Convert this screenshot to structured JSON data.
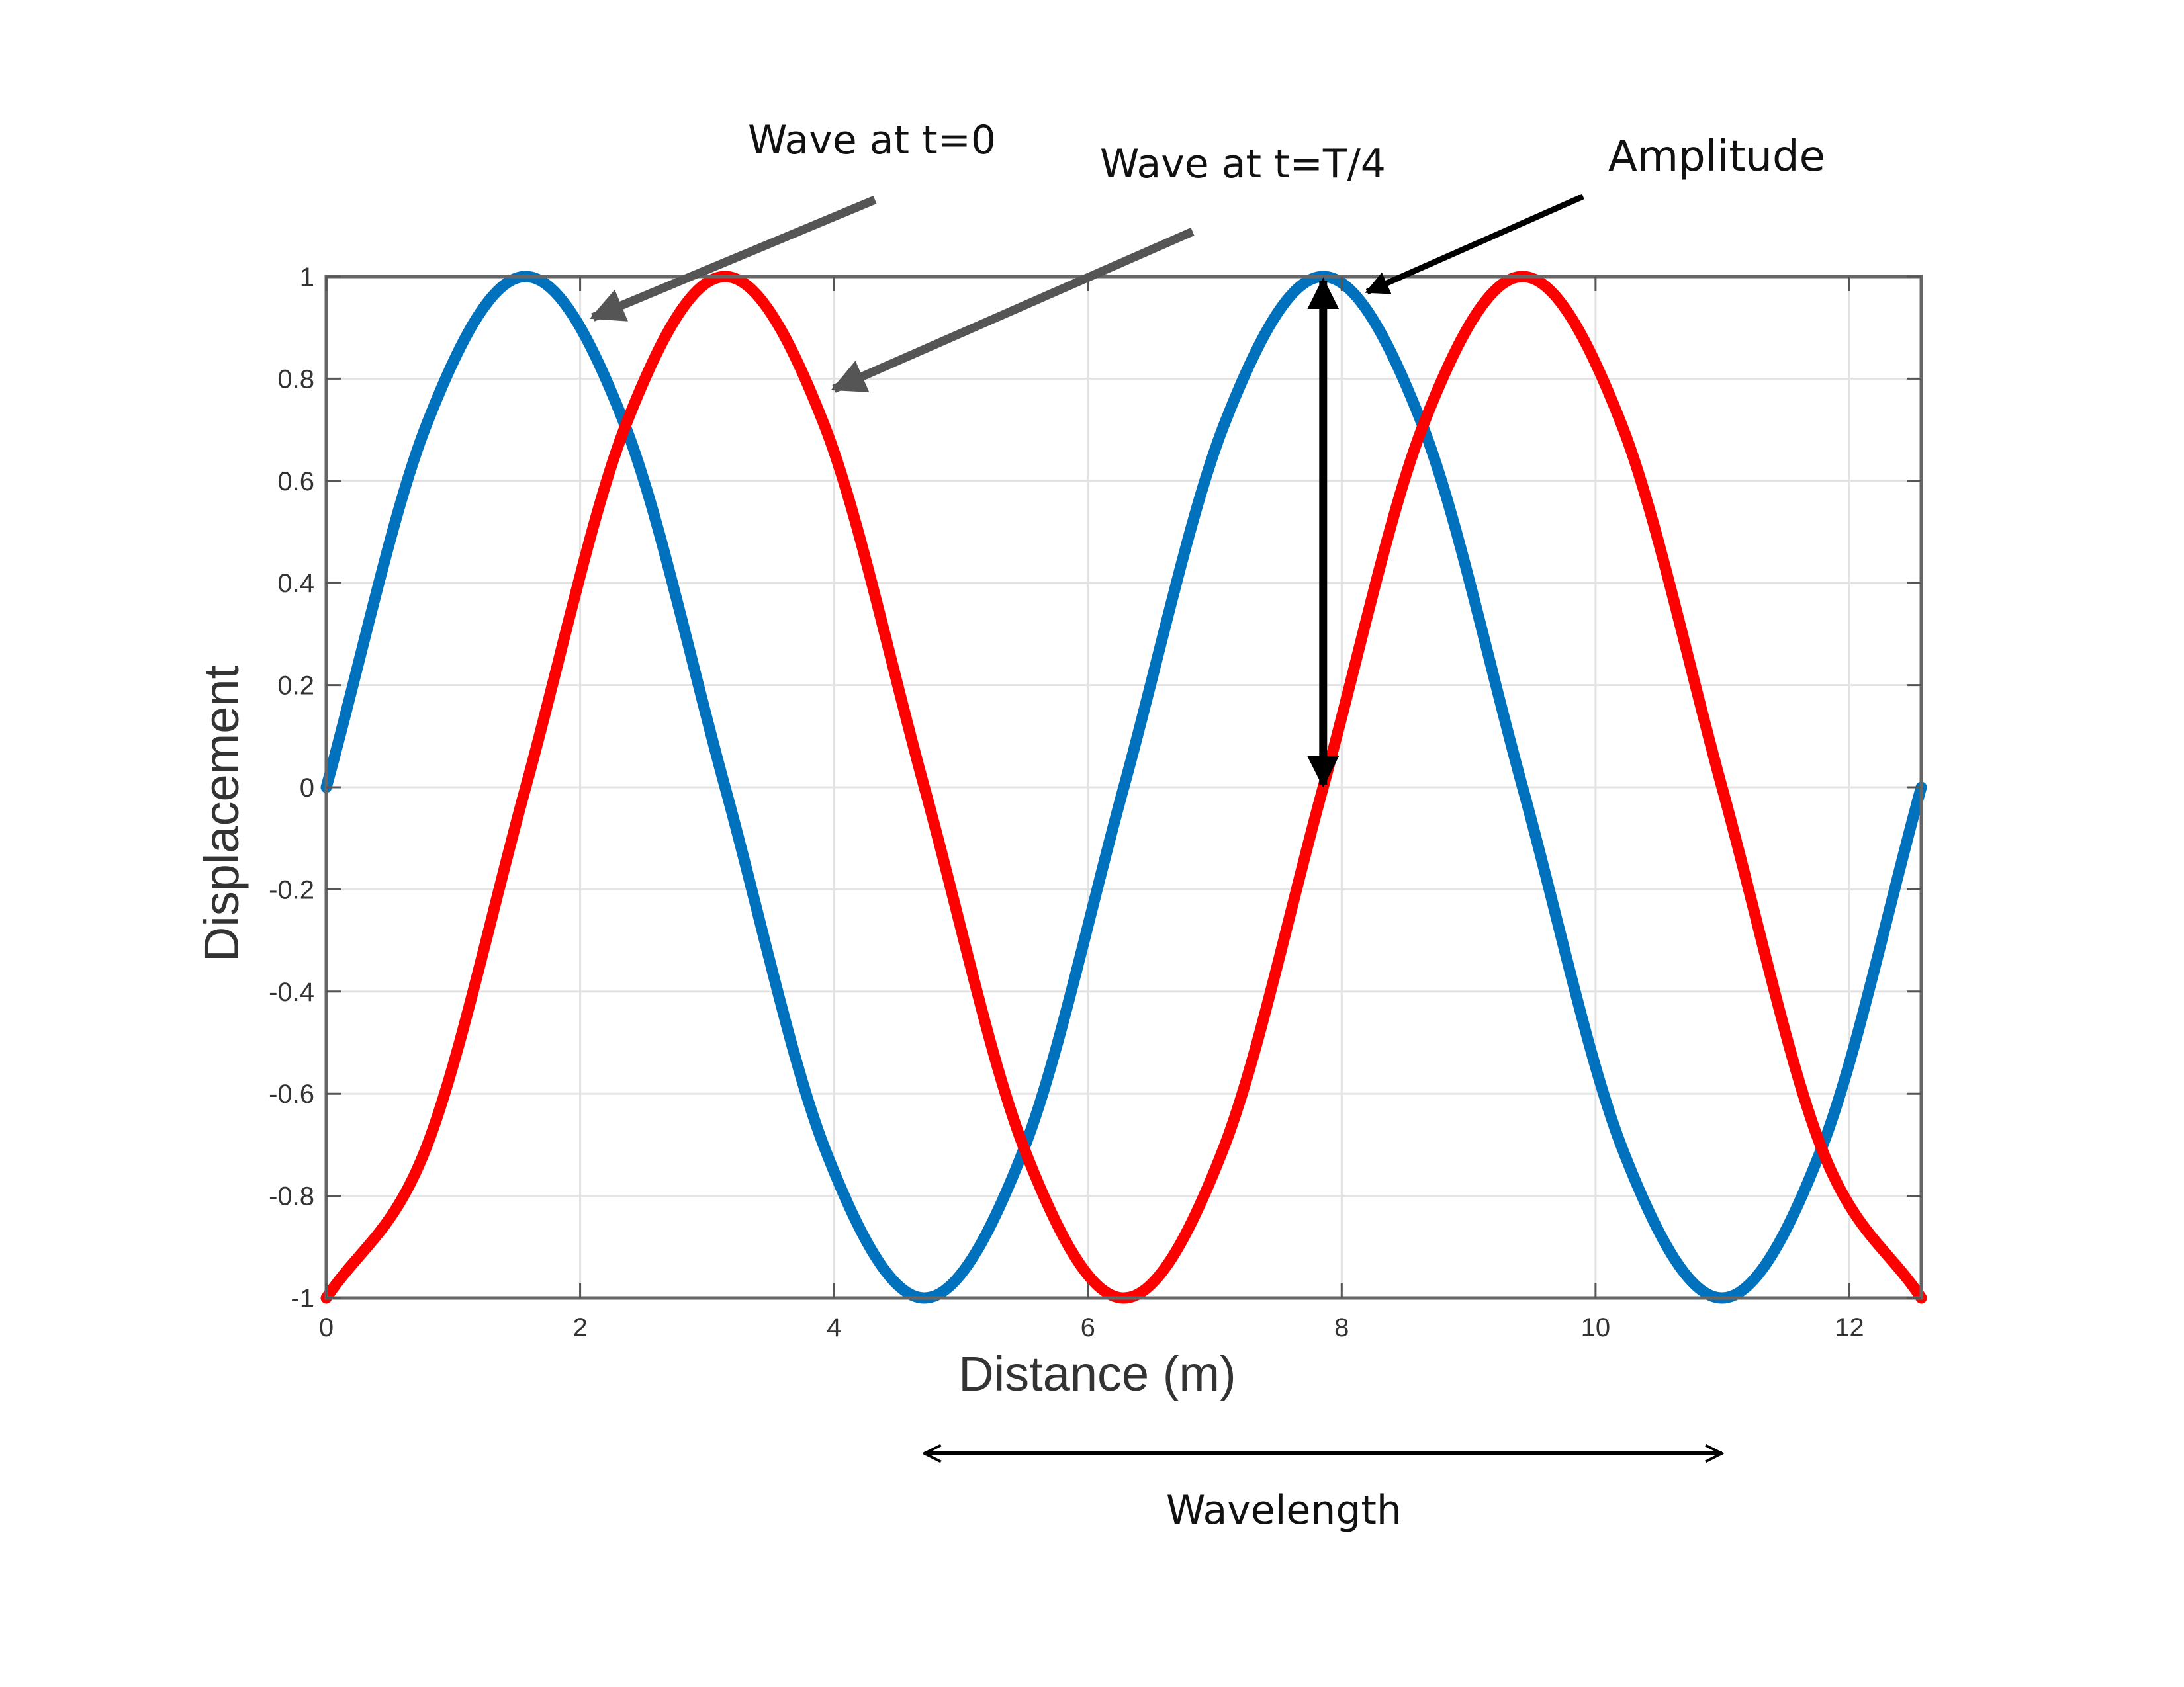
{
  "chart_data": {
    "type": "line",
    "xlabel": "Distance (m)",
    "ylabel": "Displacement",
    "xlim": [
      0,
      12.566
    ],
    "ylim": [
      -1,
      1
    ],
    "x_ticks": [
      0,
      2,
      4,
      6,
      8,
      10,
      12
    ],
    "x_tick_labels": [
      "0",
      "2",
      "4",
      "6",
      "8",
      "10",
      "12"
    ],
    "y_ticks": [
      1,
      0.8,
      0.6,
      0.4,
      0.2,
      0,
      -0.2,
      -0.4,
      -0.6,
      -0.8,
      -1
    ],
    "y_tick_labels": [
      "1",
      "0.8",
      "0.6",
      "0.4",
      "0.2",
      "0",
      "-0.2",
      "-0.4",
      "-0.6",
      "-0.8",
      "-1"
    ],
    "grid": true,
    "series": [
      {
        "color": "#0072BD",
        "x": [
          0,
          0.785,
          1.571,
          2.356,
          3.142,
          3.927,
          4.712,
          5.498,
          6.283,
          7.069,
          7.854,
          8.639,
          9.425,
          10.21,
          10.996,
          11.781,
          12.566
        ],
        "y": [
          0,
          0.707,
          1,
          0.707,
          0,
          -0.707,
          -1,
          -0.707,
          0,
          0.707,
          1,
          0.707,
          0,
          -0.707,
          -1,
          -0.707,
          0
        ]
      },
      {
        "color": "#FF0000",
        "x": [
          0,
          0.785,
          1.571,
          2.356,
          3.142,
          3.927,
          4.712,
          5.498,
          6.283,
          7.069,
          7.854,
          8.639,
          9.425,
          10.21,
          10.996,
          11.781,
          12.566
        ],
        "y": [
          -1,
          -0.707,
          0,
          0.707,
          1,
          0.707,
          0,
          -0.707,
          -1,
          -0.707,
          0,
          0.707,
          1,
          0.707,
          0,
          -0.707,
          -1
        ]
      }
    ],
    "annotations": [
      {
        "text": "Wave at t=0",
        "points_to": {
          "x": 2.1,
          "y": 0.92
        }
      },
      {
        "text": "Wave at t=T/4",
        "points_to": {
          "x": 4.0,
          "y": 0.78
        }
      },
      {
        "text": "Amplitude",
        "points_to": {
          "x": 8.2,
          "y": 0.97
        }
      },
      {
        "text": "Wavelength",
        "span_x": [
          4.712,
          10.996
        ]
      }
    ],
    "amplitude_marker": {
      "x": 7.854,
      "y_from": 0,
      "y_to": 1
    }
  }
}
